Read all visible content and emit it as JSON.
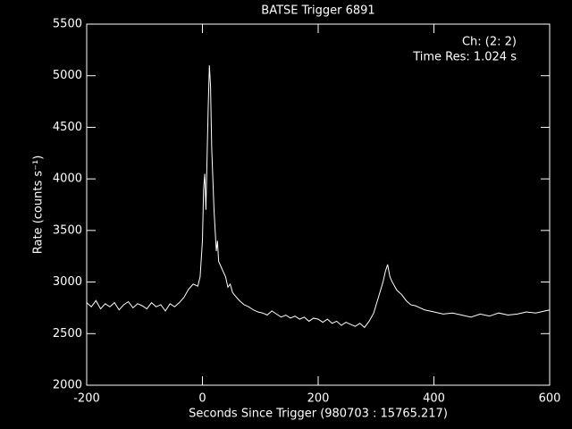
{
  "chart_data": {
    "type": "line",
    "title": "BATSE Trigger 6891",
    "xlabel": "Seconds Since Trigger (980703 : 15765.217)",
    "ylabel": "Rate (counts s⁻¹)",
    "annotations": [
      "Ch: (2: 2)",
      "Time Res: 1.024 s"
    ],
    "xlim": [
      -200,
      600
    ],
    "xticks": [
      -200,
      0,
      200,
      400,
      600
    ],
    "ylim": [
      2000,
      5500
    ],
    "yticks": [
      2000,
      2500,
      3000,
      3500,
      4000,
      4500,
      5000,
      5500
    ],
    "series": [
      {
        "color": "#ffffff",
        "x": [
          -200,
          -192,
          -184,
          -176,
          -168,
          -160,
          -152,
          -144,
          -136,
          -128,
          -120,
          -112,
          -104,
          -96,
          -88,
          -80,
          -72,
          -64,
          -56,
          -48,
          -40,
          -32,
          -24,
          -16,
          -8,
          -4,
          0,
          2,
          4,
          6,
          8,
          10,
          12,
          14,
          16,
          18,
          20,
          22,
          24,
          26,
          28,
          32,
          36,
          40,
          44,
          48,
          52,
          56,
          64,
          72,
          80,
          88,
          96,
          104,
          112,
          120,
          128,
          136,
          144,
          152,
          160,
          168,
          176,
          184,
          192,
          200,
          208,
          216,
          224,
          232,
          240,
          248,
          256,
          264,
          272,
          280,
          288,
          296,
          304,
          312,
          316,
          320,
          324,
          328,
          336,
          344,
          352,
          360,
          368,
          376,
          384,
          392,
          400,
          416,
          432,
          448,
          464,
          480,
          496,
          512,
          528,
          544,
          560,
          576,
          592,
          600
        ],
        "values": [
          2800,
          2760,
          2820,
          2740,
          2790,
          2760,
          2800,
          2730,
          2780,
          2810,
          2750,
          2790,
          2770,
          2740,
          2800,
          2760,
          2780,
          2720,
          2790,
          2760,
          2800,
          2850,
          2930,
          2980,
          2960,
          3050,
          3400,
          3900,
          4050,
          3700,
          4200,
          4700,
          5100,
          4900,
          4300,
          4000,
          3700,
          3500,
          3300,
          3400,
          3200,
          3150,
          3100,
          3050,
          2950,
          2980,
          2900,
          2870,
          2820,
          2780,
          2760,
          2730,
          2710,
          2700,
          2680,
          2720,
          2690,
          2660,
          2680,
          2650,
          2670,
          2640,
          2660,
          2620,
          2650,
          2640,
          2610,
          2640,
          2600,
          2620,
          2580,
          2610,
          2590,
          2570,
          2600,
          2560,
          2620,
          2700,
          2850,
          3000,
          3100,
          3170,
          3050,
          3000,
          2920,
          2880,
          2820,
          2780,
          2770,
          2750,
          2730,
          2720,
          2710,
          2690,
          2700,
          2680,
          2660,
          2690,
          2670,
          2700,
          2680,
          2690,
          2710,
          2700,
          2720,
          2730
        ]
      }
    ]
  }
}
